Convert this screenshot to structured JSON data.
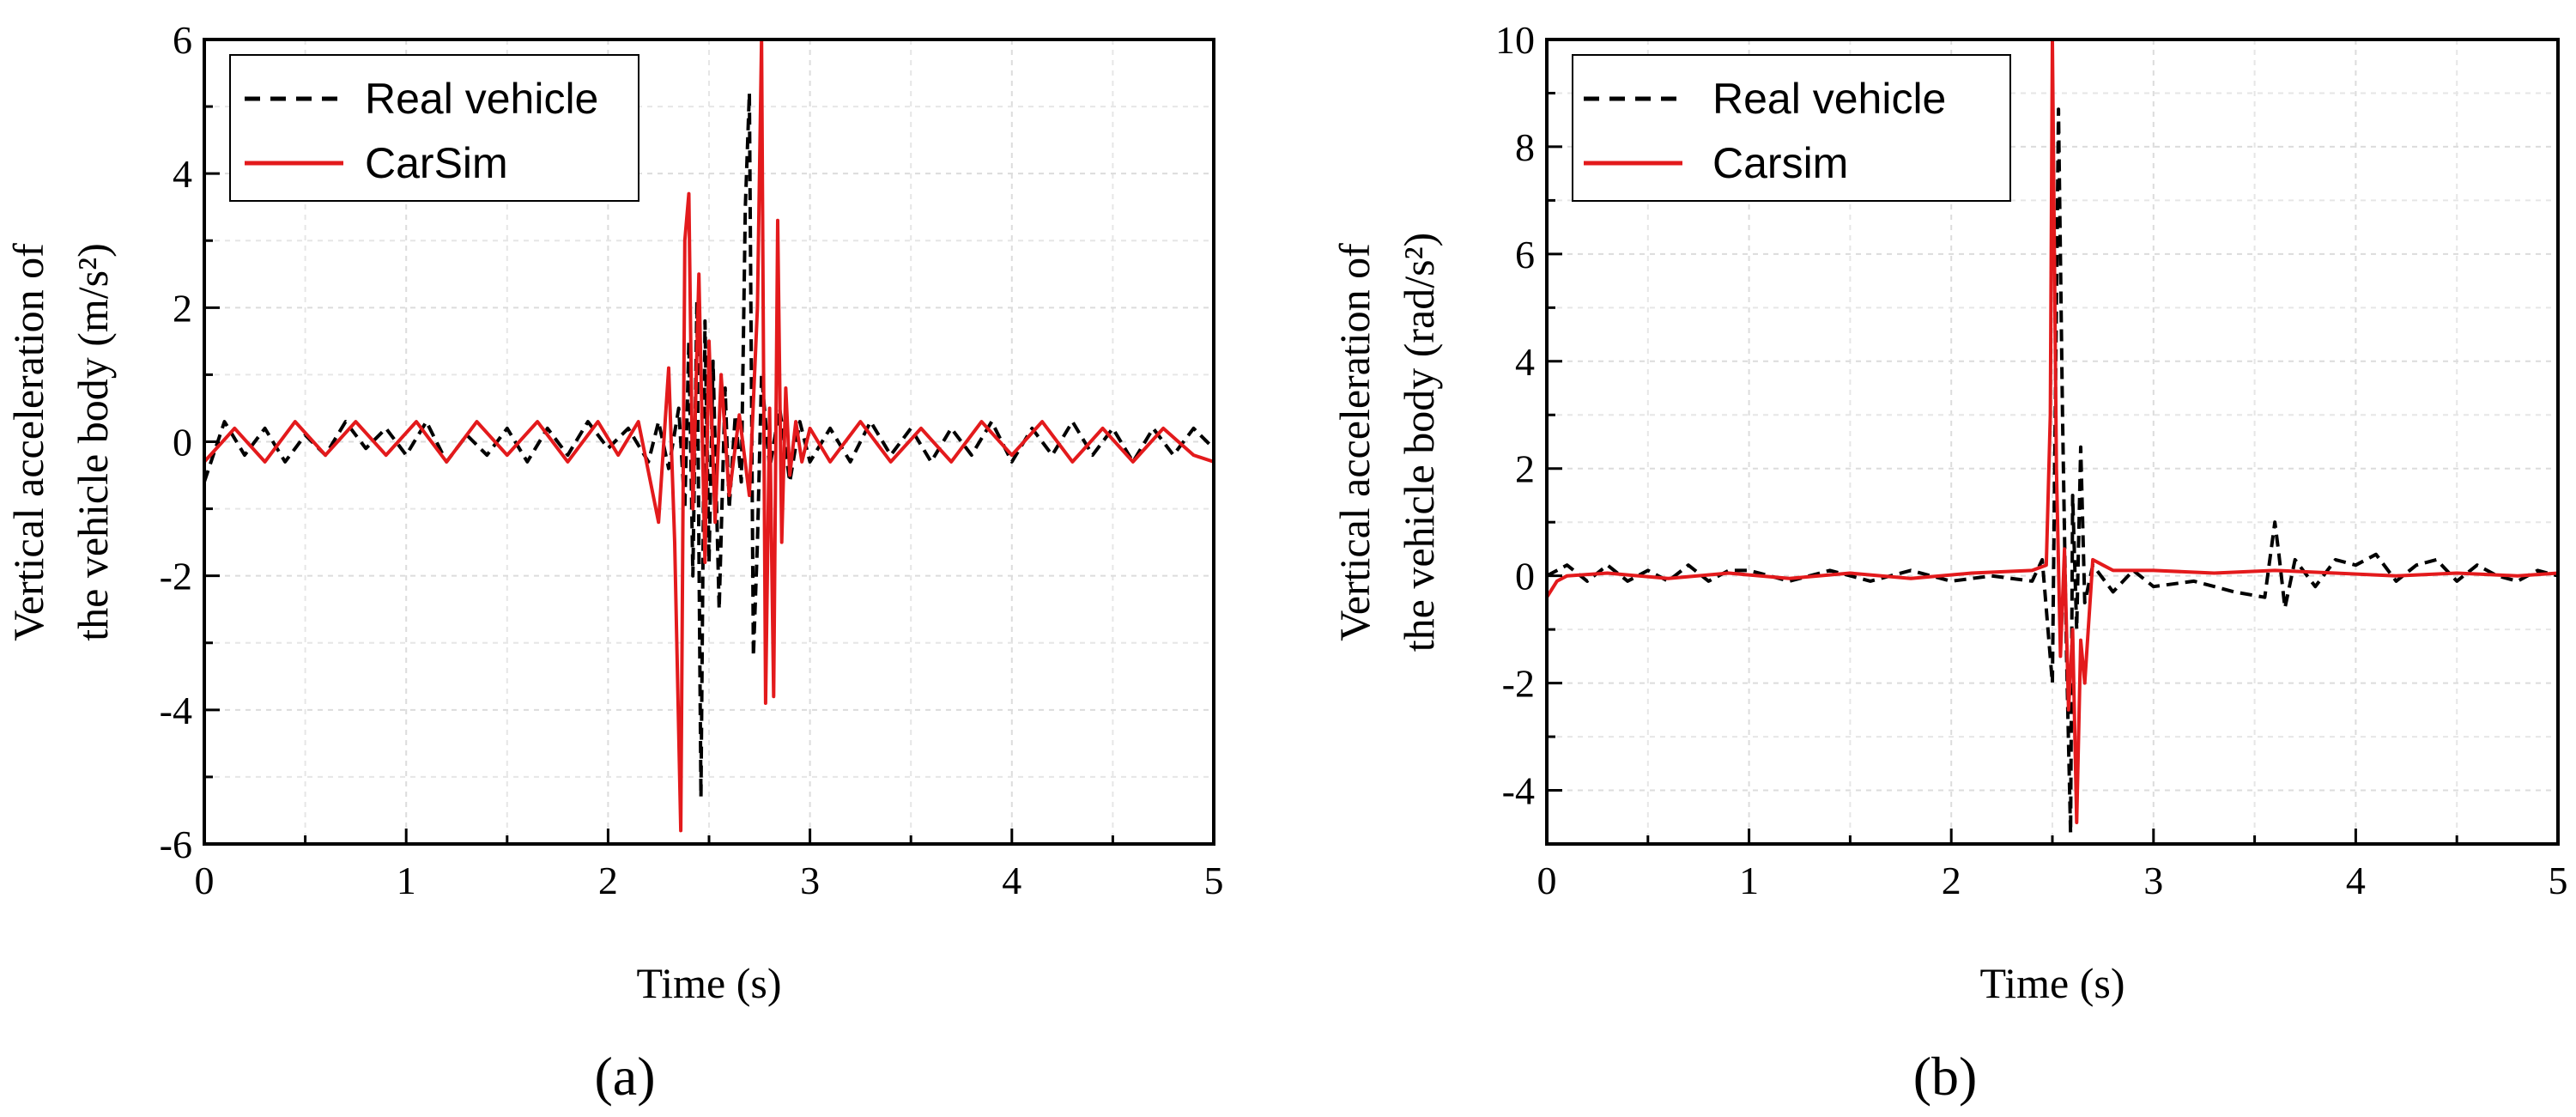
{
  "chart_data": [
    {
      "type": "line",
      "panel_label": "(a)",
      "xlabel": "Time (s)",
      "ylabel_line1": "Vertical acceleration of",
      "ylabel_line2": "the vehicle body (m/s²)",
      "xlim": [
        0,
        5
      ],
      "ylim": [
        -6,
        6
      ],
      "xticks": [
        0,
        1,
        2,
        3,
        4,
        5
      ],
      "yticks": [
        -6,
        -4,
        -2,
        0,
        2,
        4,
        6
      ],
      "grid": true,
      "legend_position": "top-left",
      "colors": {
        "real": "#000000",
        "sim": "#e31a1c"
      },
      "series": [
        {
          "name": "Real vehicle",
          "style": "dashed",
          "x": [
            0,
            0.1,
            0.2,
            0.3,
            0.4,
            0.5,
            0.6,
            0.7,
            0.8,
            0.9,
            1.0,
            1.1,
            1.2,
            1.3,
            1.4,
            1.5,
            1.6,
            1.7,
            1.8,
            1.9,
            2.0,
            2.1,
            2.2,
            2.25,
            2.3,
            2.35,
            2.38,
            2.4,
            2.42,
            2.44,
            2.46,
            2.48,
            2.5,
            2.52,
            2.55,
            2.58,
            2.6,
            2.63,
            2.66,
            2.68,
            2.7,
            2.72,
            2.74,
            2.76,
            2.8,
            2.85,
            2.9,
            2.95,
            3.0,
            3.1,
            3.2,
            3.3,
            3.4,
            3.5,
            3.6,
            3.7,
            3.8,
            3.9,
            4.0,
            4.1,
            4.2,
            4.3,
            4.4,
            4.5,
            4.6,
            4.7,
            4.8,
            4.9,
            5.0
          ],
          "values": [
            -0.6,
            0.3,
            -0.2,
            0.2,
            -0.3,
            0.1,
            -0.2,
            0.3,
            -0.1,
            0.2,
            -0.2,
            0.3,
            -0.3,
            0.1,
            -0.2,
            0.2,
            -0.3,
            0.2,
            -0.2,
            0.3,
            -0.1,
            0.2,
            -0.3,
            0.3,
            -0.4,
            0.5,
            -1.0,
            1.5,
            -2.0,
            2.1,
            -5.3,
            1.8,
            -1.8,
            1.2,
            -2.5,
            0.8,
            -1.0,
            0.4,
            -0.6,
            3.5,
            5.2,
            -3.2,
            -1.5,
            1.0,
            -0.4,
            0.5,
            -0.6,
            0.3,
            -0.3,
            0.2,
            -0.3,
            0.3,
            -0.2,
            0.2,
            -0.3,
            0.2,
            -0.2,
            0.3,
            -0.3,
            0.2,
            -0.2,
            0.3,
            -0.2,
            0.2,
            -0.3,
            0.2,
            -0.2,
            0.2,
            -0.1
          ]
        },
        {
          "name": "CarSim",
          "style": "solid",
          "x": [
            0,
            0.15,
            0.3,
            0.45,
            0.6,
            0.75,
            0.9,
            1.05,
            1.2,
            1.35,
            1.5,
            1.65,
            1.8,
            1.95,
            2.05,
            2.15,
            2.25,
            2.3,
            2.33,
            2.36,
            2.38,
            2.4,
            2.42,
            2.45,
            2.48,
            2.5,
            2.53,
            2.56,
            2.6,
            2.65,
            2.7,
            2.74,
            2.76,
            2.78,
            2.8,
            2.82,
            2.84,
            2.86,
            2.88,
            2.9,
            2.93,
            2.96,
            3.0,
            3.1,
            3.25,
            3.4,
            3.55,
            3.7,
            3.85,
            4.0,
            4.15,
            4.3,
            4.45,
            4.6,
            4.75,
            4.9,
            5.0
          ],
          "values": [
            -0.3,
            0.2,
            -0.3,
            0.3,
            -0.2,
            0.3,
            -0.2,
            0.3,
            -0.3,
            0.3,
            -0.2,
            0.3,
            -0.3,
            0.3,
            -0.2,
            0.3,
            -1.2,
            1.1,
            -1.5,
            -5.8,
            3.0,
            3.7,
            -1.0,
            2.5,
            -1.8,
            1.5,
            -1.2,
            1.0,
            -0.8,
            0.4,
            -0.8,
            2.0,
            6.0,
            -3.9,
            0.5,
            -3.8,
            3.3,
            -1.5,
            0.8,
            -0.5,
            0.3,
            -0.3,
            0.2,
            -0.3,
            0.3,
            -0.3,
            0.2,
            -0.3,
            0.3,
            -0.2,
            0.3,
            -0.3,
            0.2,
            -0.3,
            0.2,
            -0.2,
            -0.3
          ]
        }
      ]
    },
    {
      "type": "line",
      "panel_label": "(b)",
      "xlabel": "Time (s)",
      "ylabel_line1": "Vertical acceleration of",
      "ylabel_line2": "the vehicle body (rad/s²)",
      "xlim": [
        0,
        5
      ],
      "ylim": [
        -5,
        10
      ],
      "xticks": [
        0,
        1,
        2,
        3,
        4,
        5
      ],
      "yticks": [
        -4,
        -2,
        0,
        2,
        4,
        6,
        8,
        10
      ],
      "grid": true,
      "legend_position": "top-left",
      "colors": {
        "real": "#000000",
        "sim": "#e31a1c"
      },
      "series": [
        {
          "name": "Real vehicle",
          "style": "dashed",
          "x": [
            0,
            0.1,
            0.2,
            0.3,
            0.4,
            0.5,
            0.6,
            0.7,
            0.8,
            0.9,
            1.0,
            1.2,
            1.4,
            1.6,
            1.8,
            2.0,
            2.2,
            2.4,
            2.45,
            2.5,
            2.53,
            2.55,
            2.57,
            2.59,
            2.6,
            2.62,
            2.64,
            2.66,
            2.7,
            2.8,
            2.9,
            3.0,
            3.2,
            3.4,
            3.55,
            3.6,
            3.62,
            3.65,
            3.7,
            3.8,
            3.9,
            4.0,
            4.1,
            4.2,
            4.3,
            4.4,
            4.5,
            4.6,
            4.7,
            4.8,
            4.9,
            5.0
          ],
          "values": [
            0,
            0.2,
            -0.1,
            0.2,
            -0.1,
            0.1,
            -0.1,
            0.2,
            -0.1,
            0.1,
            0.1,
            -0.1,
            0.1,
            -0.1,
            0.1,
            -0.1,
            0.0,
            -0.1,
            0.3,
            -2.0,
            8.7,
            3.0,
            -1.5,
            -4.8,
            1.5,
            -1.0,
            2.4,
            -0.5,
            0.2,
            -0.3,
            0.1,
            -0.2,
            -0.1,
            -0.3,
            -0.4,
            1.0,
            0.4,
            -0.6,
            0.3,
            -0.2,
            0.3,
            0.2,
            0.4,
            -0.1,
            0.2,
            0.3,
            -0.1,
            0.2,
            0.0,
            -0.1,
            0.1,
            0.0
          ]
        },
        {
          "name": "Carsim",
          "style": "solid",
          "x": [
            0,
            0.05,
            0.1,
            0.3,
            0.6,
            0.9,
            1.2,
            1.5,
            1.8,
            2.1,
            2.4,
            2.47,
            2.49,
            2.5,
            2.52,
            2.54,
            2.56,
            2.58,
            2.6,
            2.62,
            2.64,
            2.66,
            2.7,
            2.75,
            2.8,
            2.9,
            3.0,
            3.3,
            3.6,
            3.9,
            4.2,
            4.5,
            4.8,
            5.0
          ],
          "values": [
            -0.4,
            -0.1,
            0.0,
            0.05,
            -0.05,
            0.05,
            -0.05,
            0.05,
            -0.05,
            0.05,
            0.1,
            0.2,
            3.0,
            10.0,
            2.0,
            -1.5,
            0.5,
            -2.5,
            -1.0,
            -4.6,
            -1.2,
            -2.0,
            0.3,
            0.2,
            0.1,
            0.1,
            0.1,
            0.05,
            0.1,
            0.05,
            0.0,
            0.05,
            0.0,
            0.05
          ]
        }
      ]
    }
  ]
}
